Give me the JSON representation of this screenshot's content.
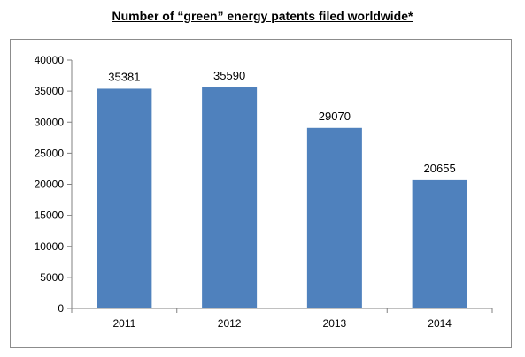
{
  "title": "Number of “green” energy patents filed worldwide*",
  "colors": {
    "bar": "#4f81bd",
    "axis": "#808080"
  },
  "chart_data": {
    "type": "bar",
    "categories": [
      "2011",
      "2012",
      "2013",
      "2014"
    ],
    "values": [
      35381,
      35590,
      29070,
      20655
    ],
    "data_labels": [
      "35381",
      "35590",
      "29070",
      "20655"
    ],
    "ylim": [
      0,
      40000
    ],
    "yticks": [
      0,
      5000,
      10000,
      15000,
      20000,
      25000,
      30000,
      35000,
      40000
    ],
    "title": "Number of “green” energy patents filed worldwide*",
    "xlabel": "",
    "ylabel": "",
    "grid": false,
    "legend": "none"
  }
}
